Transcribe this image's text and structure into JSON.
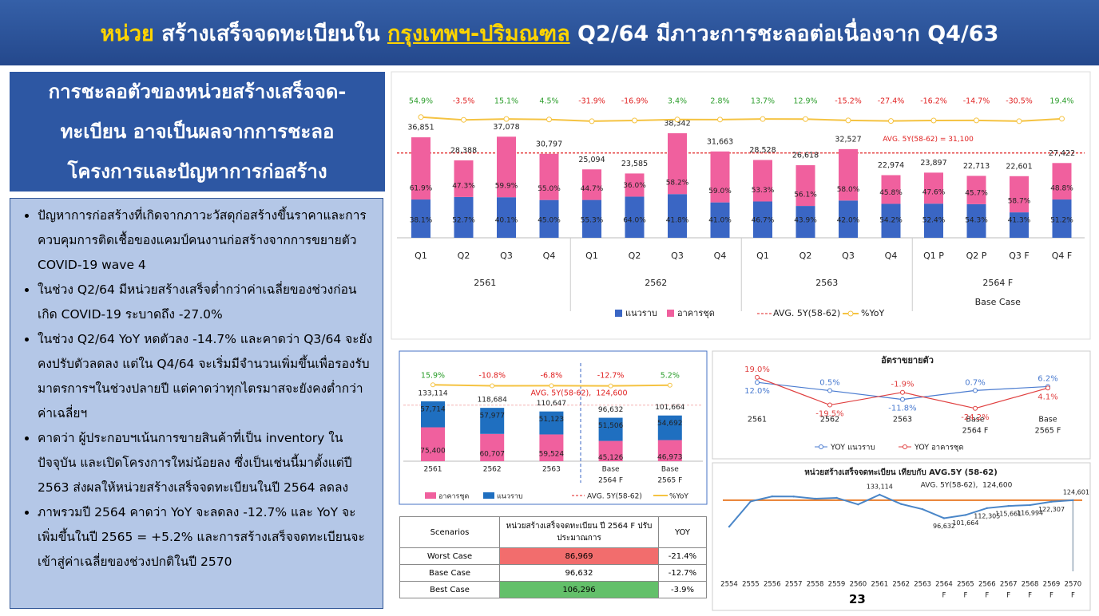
{
  "header": {
    "title_parts": [
      "หน่วย",
      " สร้างเสร็จจดทะเบียนใน ",
      "กรุงเทพฯ-ปริมณฑล",
      " Q2/64 มีภาวะการชะลอต่อเนื่องจาก Q4/63"
    ]
  },
  "left_panel": {
    "heading_lines": [
      "การชะลอตัวของหน่วยสร้างเสร็จจด-",
      "ทะเบียน อาจเป็นผลจากการชะลอ",
      "โครงการและปัญหาการก่อสร้าง"
    ],
    "bullets": [
      "ปัญหาการก่อสร้างที่เกิดจากภาวะวัสดุก่อสร้างขึ้นราคาและการควบคุมการติดเชื้อของแคมป์คนงานก่อสร้างจากการขยายตัว COVID-19 wave 4",
      "ในช่วง Q2/64 มีหน่วยสร้างเสร็จต่ำกว่าค่าเฉลี่ยของช่วงก่อนเกิด COVID-19 ระบาดถึง -27.0%",
      "ในช่วง Q2/64 YoY หดตัวลง -14.7% และคาดว่า Q3/64 จะยังคงปรับตัวลดลง แต่ใน Q4/64 จะเริ่มมีจำนวนเพิ่มขึ้นเพื่อรองรับมาตรการฯในช่วงปลายปี แต่คาดว่าทุกไตรมาสจะยังคงต่ำกว่าค่าเฉลี่ยฯ",
      "คาดว่า ผู้ประกอบฯเน้นการขายสินค้าที่เป็น inventory ในปัจจุบัน และเปิดโครงการใหม่น้อยลง ซึ่งเป็นเช่นนี้มาตั้งแต่ปี 2563 ส่งผลให้หน่วยสร้างเสร็จจดทะเบียนในปี 2564 ลดลง",
      "ภาพรวมปี 2564 คาดว่า YoY จะลดลง -12.7% และ YoY จะเพิ่มขึ้นในปี 2565 = +5.2% และการสร้างเสร็จจดทะเบียนจะเข้าสู่ค่าเฉลี่ยของช่วงปกติในปี 2570"
    ]
  },
  "table": {
    "header": [
      "Scenarios",
      "หน่วยสร้างเสร็จจดทะเบียน ปี 2564 F ปรับประมาณการ",
      "YOY"
    ],
    "rows": [
      [
        "Worst Case",
        "86,969",
        "-21.4%"
      ],
      [
        "Base Case",
        "96,632",
        "-12.7%"
      ],
      [
        "Best Case",
        "106,296",
        "-3.9%"
      ]
    ]
  },
  "page_number": "23",
  "chart_data": [
    {
      "type": "stacked-bar-line",
      "categories": [
        "Q1",
        "Q2",
        "Q3",
        "Q4",
        "Q1",
        "Q2",
        "Q3",
        "Q4",
        "Q1",
        "Q2",
        "Q3",
        "Q4",
        "Q1 P",
        "Q2 P",
        "Q3 F",
        "Q4 F"
      ],
      "groups": [
        "2561",
        "2562",
        "2563",
        "2564 F"
      ],
      "group_note": "Base Case",
      "totals": {
        "values": [
          36851,
          28388,
          37078,
          30797,
          25094,
          23585,
          38342,
          31663,
          28528,
          26618,
          32527,
          22974,
          23897,
          22713,
          22601,
          27422
        ],
        "value_labels": [
          "36,851",
          "28,388",
          "37,078",
          "30,797",
          "25,094",
          "23,585",
          "38,342",
          "31,663",
          "28,528",
          "26,618",
          "32,527",
          "22,974",
          "23,897",
          "22,713",
          "22,601",
          "27,422"
        ]
      },
      "series": [
        {
          "name": "แนวราบ",
          "color": "#3a66c4",
          "values": [
            38.1,
            52.7,
            40.1,
            45.0,
            55.3,
            64.0,
            41.8,
            41.0,
            46.7,
            43.9,
            42.0,
            54.2,
            52.4,
            54.3,
            41.3,
            51.2
          ],
          "value_labels": [
            "38.1%",
            "52.7%",
            "40.1%",
            "45.0%",
            "55.3%",
            "64.0%",
            "41.8%",
            "41.0%",
            "46.7%",
            "43.9%",
            "42.0%",
            "54.2%",
            "52.4%",
            "54.3%",
            "41.3%",
            "51.2%"
          ]
        },
        {
          "name": "อาคารชุด",
          "color": "#f0609e",
          "values": [
            61.9,
            47.3,
            59.9,
            55.0,
            44.7,
            36.0,
            58.2,
            59.0,
            53.3,
            56.1,
            58.0,
            45.8,
            47.6,
            45.7,
            58.7,
            48.8
          ],
          "value_labels": [
            "61.9%",
            "47.3%",
            "59.9%",
            "55.0%",
            "44.7%",
            "36.0%",
            "58.2%",
            "59.0%",
            "53.3%",
            "56.1%",
            "58.0%",
            "45.8%",
            "47.6%",
            "45.7%",
            "58.7%",
            "48.8%"
          ]
        },
        {
          "name": "%YoY",
          "color": "#f5c342",
          "values": [
            54.9,
            -3.5,
            15.1,
            4.5,
            -31.9,
            -16.9,
            3.4,
            2.8,
            13.7,
            12.9,
            -15.2,
            -27.4,
            -16.2,
            -14.7,
            -30.5,
            19.4
          ],
          "value_labels": [
            "54.9%",
            "-3.5%",
            "15.1%",
            "4.5%",
            "-31.9%",
            "-16.9%",
            "3.4%",
            "2.8%",
            "13.7%",
            "12.9%",
            "-15.2%",
            "-27.4%",
            "-16.2%",
            "-14.7%",
            "-30.5%",
            "19.4%"
          ]
        }
      ],
      "avg": {
        "name": "AVG. 5Y(58-62)",
        "value": 31100,
        "label": "AVG. 5Y(58-62) = 31,100",
        "color": "#e02020"
      }
    },
    {
      "type": "stacked-bar-line",
      "categories": [
        [
          "2561"
        ],
        [
          "2562"
        ],
        [
          "2563"
        ],
        [
          "Base",
          "2564 F"
        ],
        [
          "Base",
          "2565 F"
        ]
      ],
      "totals": {
        "values": [
          133114,
          118684,
          110647,
          96632,
          101664
        ],
        "value_labels": [
          "133,114",
          "118,684",
          "110,647",
          "96,632",
          "101,664"
        ]
      },
      "series": [
        {
          "name": "อาคารชุด",
          "color": "#f0609e",
          "values": [
            75400,
            60707,
            59524,
            45126,
            46973
          ],
          "value_labels": [
            "75,400",
            "60,707",
            "59,524",
            "45,126",
            "46,973"
          ]
        },
        {
          "name": "แนวราบ",
          "color": "#1f6fc0",
          "values": [
            57714,
            57977,
            51123,
            51506,
            54692
          ],
          "value_labels": [
            "57,714",
            "57,977",
            "51,123",
            "51,506",
            "54,692"
          ]
        },
        {
          "name": "%YoY",
          "color": "#f5c342",
          "values": [
            15.9,
            -10.8,
            -6.8,
            -12.7,
            5.2
          ],
          "value_labels": [
            "15.9%",
            "-10.8%",
            "-6.8%",
            "-12.7%",
            "5.2%"
          ]
        }
      ],
      "avg": {
        "name": "AVG. 5Y(58-62)",
        "value": 124600,
        "label": "AVG. 5Y(58-62),  124,600",
        "color": "#e02020"
      }
    },
    {
      "type": "line",
      "title": "อัตราขยายตัว",
      "categories": [
        [
          "2561"
        ],
        [
          "2562"
        ],
        [
          "2563"
        ],
        [
          "Base",
          "2564 F"
        ],
        [
          "Base",
          "2565 F"
        ]
      ],
      "series": [
        {
          "name": "YOY แนวราบ",
          "color": "#4a7bd0",
          "values": [
            12.0,
            0.5,
            -11.8,
            0.7,
            6.2
          ],
          "value_labels": [
            "12.0%",
            "0.5%",
            "-11.8%",
            "0.7%",
            "6.2%"
          ]
        },
        {
          "name": "YOY อาคารชุด",
          "color": "#e04040",
          "values": [
            19.0,
            -19.5,
            -1.9,
            -24.2,
            4.1
          ],
          "value_labels": [
            "19.0%",
            "-19.5%",
            "-1.9%",
            "-24.2%",
            "4.1%"
          ]
        }
      ]
    },
    {
      "type": "line",
      "title": "หน่วยสร้างเสร็จจดทะเบียน เทียบกับ AVG.5Y (58-62)",
      "categories": [
        "2554",
        "2555",
        "2556",
        "2557",
        "2558",
        "2559",
        "2560",
        "2561",
        "2562",
        "2563",
        "2564",
        "2565",
        "2566",
        "2567",
        "2568",
        "2569",
        "2570"
      ],
      "category_sublabels": [
        null,
        null,
        null,
        null,
        null,
        null,
        null,
        null,
        null,
        null,
        "F",
        "F",
        "F",
        "F",
        "F",
        "F",
        "F"
      ],
      "series": [
        {
          "color": "#4a86c8",
          "values": [
            83600,
            122700,
            130500,
            130300,
            127000,
            128200,
            118000,
            133114,
            118684,
            110647,
            96632,
            101664,
            112305,
            115661,
            116994,
            122307,
            124601
          ],
          "value_labels": [
            null,
            null,
            null,
            null,
            null,
            null,
            null,
            "133,114",
            null,
            null,
            "96,632",
            "101,664",
            "112,305",
            "115,661",
            "116,994",
            "122,307",
            "124,601"
          ]
        }
      ],
      "avg": {
        "value": 124600,
        "label": "AVG. 5Y(58-62),  124,600",
        "color": "#e87d2b"
      }
    }
  ]
}
